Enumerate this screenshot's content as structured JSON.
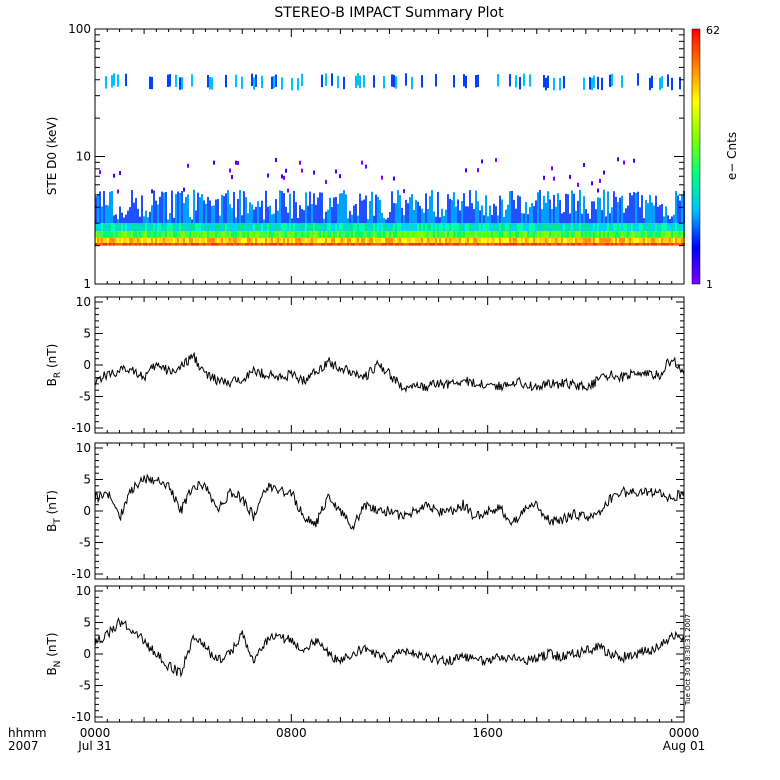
{
  "title": "STEREO-B IMPACT Summary Plot",
  "time_axis": {
    "row1_label": "hhmm",
    "row2_label": "2007",
    "ticks": [
      {
        "hour": 0,
        "hhmm": "0000",
        "date": "Jul 31"
      },
      {
        "hour": 8,
        "hhmm": "0800",
        "date": ""
      },
      {
        "hour": 16,
        "hhmm": "1600",
        "date": ""
      },
      {
        "hour": 24,
        "hhmm": "0000",
        "date": "Aug 01"
      }
    ],
    "xlim_hours": [
      0,
      24
    ]
  },
  "timestamp_note": "Tue Oct 30 18:30:31 2007",
  "chart_data": [
    {
      "type": "heatmap",
      "ylabel": "STE D0 (keV)",
      "y_scale": "log",
      "ylim": [
        1,
        100
      ],
      "y_ticks": [
        "1",
        "10",
        "100"
      ],
      "colorbar": {
        "label": "e− Cnts",
        "min": "1",
        "max": "62",
        "colors": [
          "#7f00ff",
          "#0000ff",
          "#00bfff",
          "#00ff80",
          "#80ff00",
          "#ffff00",
          "#ff8000",
          "#ff0000"
        ]
      },
      "note": "Dense counts at ~2-4 keV (orange/yellow near 2 keV, green ~2.2-2.6 keV, cyan/blue up to ~5 keV), sparse blue/purple up to ~10 keV, intermittent cyan/blue band at ~35-45 keV."
    },
    {
      "type": "line",
      "ylabel": "B_R (nT)",
      "ylim": [
        -10,
        10
      ],
      "y_ticks": [
        "10",
        "5",
        "0",
        "-5",
        "-10"
      ],
      "x_hours": [
        0,
        0.5,
        1,
        1.5,
        2,
        2.5,
        3,
        3.5,
        4,
        4.5,
        5,
        5.5,
        6,
        6.5,
        7,
        7.5,
        8,
        8.5,
        9,
        9.5,
        10,
        10.5,
        11,
        11.5,
        12,
        12.5,
        13,
        13.5,
        14,
        14.5,
        15,
        15.5,
        16,
        16.5,
        17,
        17.5,
        18,
        18.5,
        19,
        19.5,
        20,
        20.5,
        21,
        21.5,
        22,
        22.5,
        23,
        23.5,
        24
      ],
      "values": [
        -2.5,
        -1.5,
        -1,
        -0.5,
        -2,
        0,
        -1,
        -0.5,
        1.5,
        -1.5,
        -2.5,
        -3,
        -2,
        -1,
        -1.5,
        -2,
        -1.5,
        -2.5,
        -1,
        0.5,
        -0.5,
        -1,
        -2,
        0,
        -1.5,
        -3.5,
        -3.5,
        -3.5,
        -3,
        -3,
        -2.5,
        -3,
        -3,
        -3.5,
        -2.5,
        -3,
        -3.5,
        -3,
        -3,
        -3,
        -3.5,
        -2.5,
        -1.5,
        -2,
        -1,
        -1.5,
        -1.5,
        1,
        -1.5
      ]
    },
    {
      "type": "line",
      "ylabel": "B_T (nT)",
      "ylim": [
        -10,
        10
      ],
      "y_ticks": [
        "10",
        "5",
        "0",
        "-5",
        "-10"
      ],
      "x_hours": [
        0,
        0.5,
        1,
        1.5,
        2,
        2.5,
        3,
        3.5,
        4,
        4.5,
        5,
        5.5,
        6,
        6.5,
        7,
        7.5,
        8,
        8.5,
        9,
        9.5,
        10,
        10.5,
        11,
        11.5,
        12,
        12.5,
        13,
        13.5,
        14,
        14.5,
        15,
        15.5,
        16,
        16.5,
        17,
        17.5,
        18,
        18.5,
        19,
        19.5,
        20,
        20.5,
        21,
        21.5,
        22,
        22.5,
        23,
        23.5,
        24
      ],
      "values": [
        2,
        3,
        -1,
        3.5,
        5,
        5,
        4,
        0,
        4,
        4,
        0,
        3,
        2,
        -1,
        4,
        3,
        3,
        -1,
        -2,
        2,
        0,
        -2.5,
        1,
        0,
        0,
        -1,
        0,
        1,
        0,
        0,
        1,
        -1,
        0,
        0.5,
        -2,
        0,
        1,
        -1.5,
        -1.5,
        -0.5,
        -1,
        -0.5,
        2,
        3,
        3,
        3,
        3,
        2,
        3
      ]
    },
    {
      "type": "line",
      "ylabel": "B_N (nT)",
      "ylim": [
        -10,
        10
      ],
      "y_ticks": [
        "10",
        "5",
        "0",
        "-5",
        "-10"
      ],
      "x_hours": [
        0,
        0.5,
        1,
        1.5,
        2,
        2.5,
        3,
        3.5,
        4,
        4.5,
        5,
        5.5,
        6,
        6.5,
        7,
        7.5,
        8,
        8.5,
        9,
        9.5,
        10,
        10.5,
        11,
        11.5,
        12,
        12.5,
        13,
        13.5,
        14,
        14.5,
        15,
        15.5,
        16,
        16.5,
        17,
        17.5,
        18,
        18.5,
        19,
        19.5,
        20,
        20.5,
        21,
        21.5,
        22,
        22.5,
        23,
        23.5,
        24
      ],
      "values": [
        2,
        3,
        5,
        4,
        2,
        0,
        -2,
        -3,
        3,
        1,
        -1,
        0,
        3,
        -1,
        2,
        3,
        2,
        1,
        2,
        0,
        -1,
        0,
        1,
        0,
        -1,
        1,
        0,
        -0.5,
        -1,
        -1,
        -0.5,
        -1,
        -1,
        -0.5,
        -0.5,
        -1,
        -0.5,
        0,
        -0.5,
        0,
        0.5,
        1,
        0,
        -0.5,
        0,
        0.5,
        1,
        3,
        2
      ]
    }
  ]
}
